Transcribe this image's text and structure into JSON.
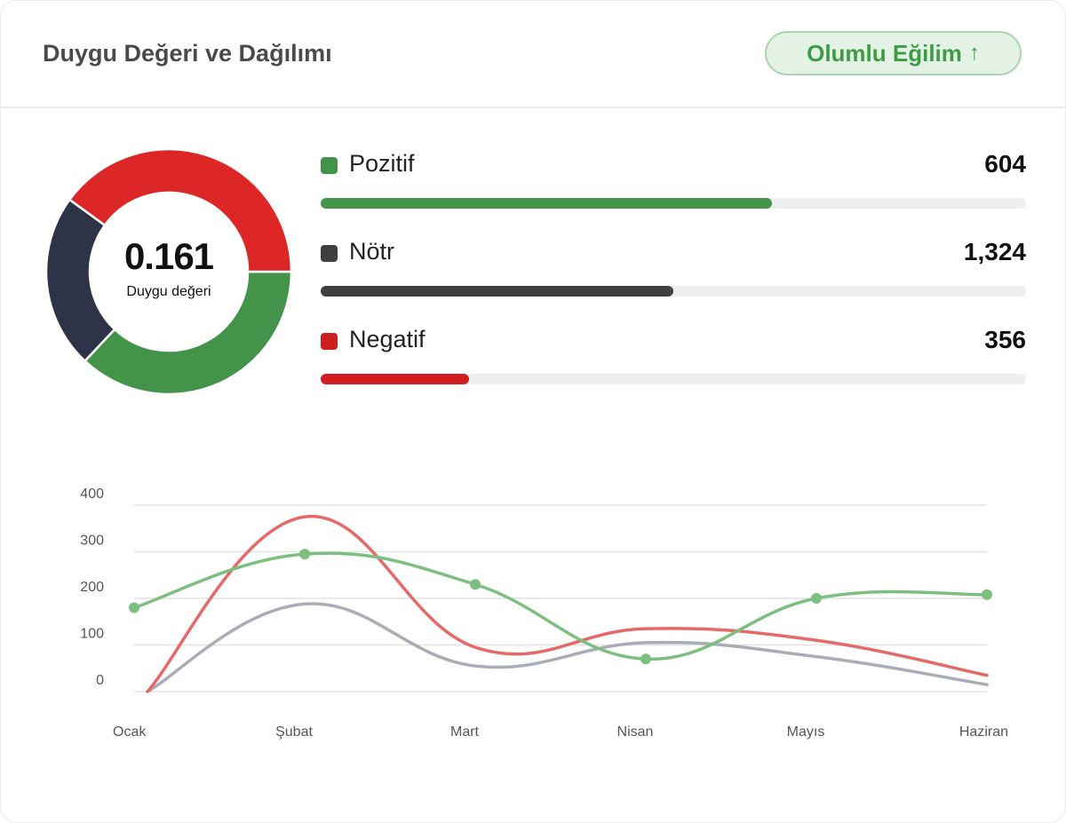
{
  "header": {
    "title": "Duygu Değeri ve Dağılımı",
    "trend_badge": "Olumlu Eğilim",
    "trend_icon": "arrow-up-icon"
  },
  "summary": {
    "score": "0.161",
    "score_label": "Duygu değeri"
  },
  "distribution": [
    {
      "label": "Pozitif",
      "value_text": "604",
      "value": 604,
      "color": "#43944a",
      "bar_fraction": 0.64
    },
    {
      "label": "Nötr",
      "value_text": "1,324",
      "value": 1324,
      "color": "#3f3f3f",
      "bar_fraction": 0.5
    },
    {
      "label": "Negatif",
      "value_text": "356",
      "value": 356,
      "color": "#d11f1f",
      "bar_fraction": 0.21
    }
  ],
  "chart_data": [
    {
      "type": "pie",
      "variant": "donut",
      "categories": [
        "Pozitif",
        "Nötr",
        "Negatif"
      ],
      "values": [
        604,
        1324,
        356
      ],
      "colors": [
        "#43944a",
        "#2e3347",
        "#dd2626"
      ],
      "displayed_fractions": [
        0.37,
        0.23,
        0.4
      ]
    },
    {
      "type": "line",
      "categories": [
        "Ocak",
        "Şubat",
        "Mart",
        "Nisan",
        "Mayıs",
        "Haziran"
      ],
      "ylim": [
        0,
        400
      ],
      "yticks": [
        "0",
        "100",
        "200",
        "300",
        "400"
      ],
      "grid": true,
      "series": [
        {
          "color": "#7cbf80",
          "markers": true,
          "values": [
            180,
            295,
            230,
            70,
            200,
            208
          ]
        },
        {
          "color": "#e46a6a",
          "markers": false,
          "values": [
            0,
            375,
            95,
            135,
            110,
            35
          ]
        },
        {
          "color": "#a9adb8",
          "markers": false,
          "values": [
            0,
            188,
            55,
            105,
            75,
            15
          ]
        }
      ]
    }
  ]
}
